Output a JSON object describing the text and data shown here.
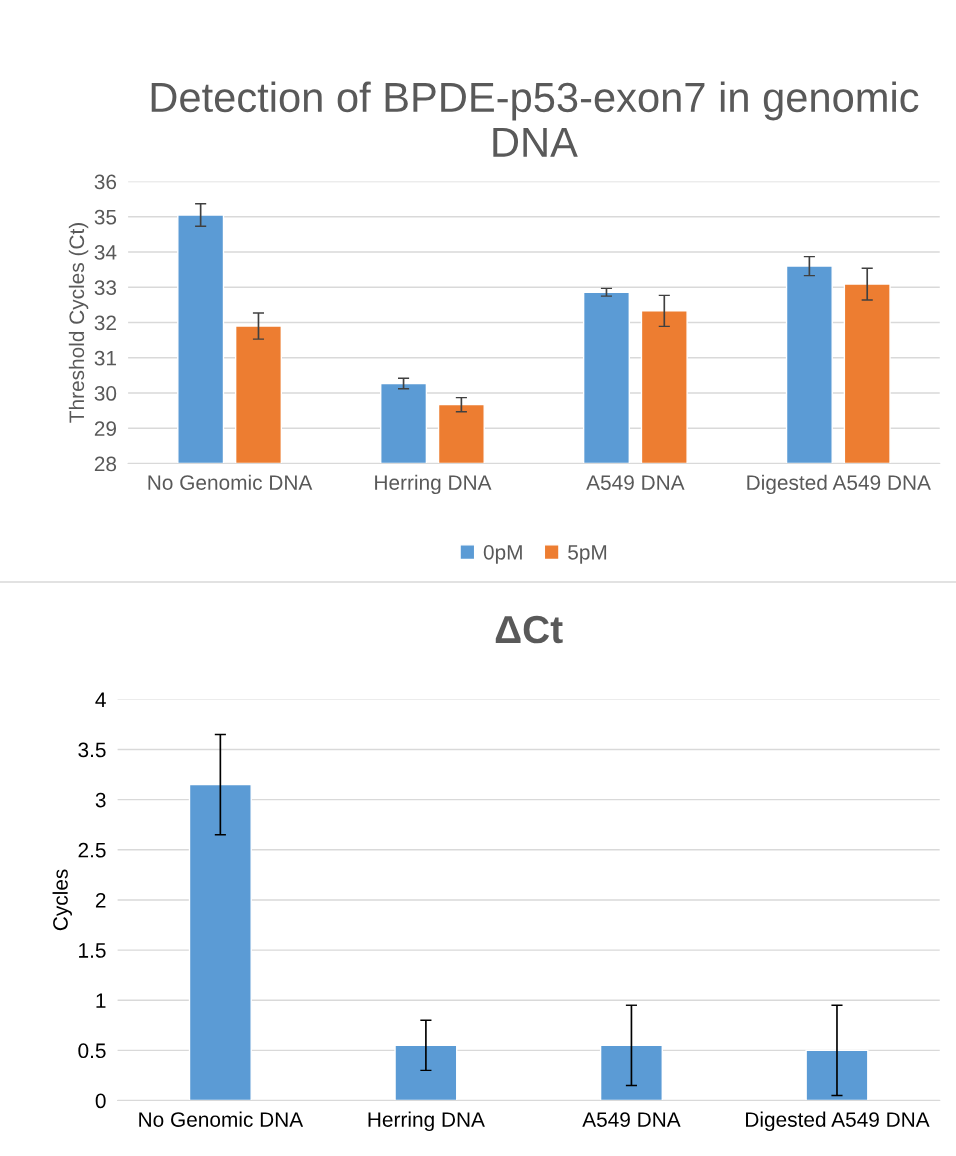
{
  "chart_data": [
    {
      "type": "bar",
      "title": "Detection of BPDE-p53-exon7 in genomic DNA",
      "ylabel": "Threshold Cycles (Ct)",
      "categories": [
        "No Genomic DNA",
        "Herring DNA",
        "A549 DNA",
        "Digested A549 DNA"
      ],
      "series": [
        {
          "name": "0pM",
          "color": "#5b9bd5",
          "values": [
            35.05,
            30.27,
            32.86,
            33.6
          ],
          "errors": [
            0.32,
            0.15,
            0.11,
            0.27
          ]
        },
        {
          "name": "5pM",
          "color": "#ed7d31",
          "values": [
            31.9,
            29.67,
            32.33,
            33.09
          ],
          "errors": [
            0.37,
            0.2,
            0.44,
            0.45
          ]
        }
      ],
      "ylim": [
        28,
        36
      ],
      "yticks": [
        28,
        29,
        30,
        31,
        32,
        33,
        34,
        35,
        36
      ],
      "grid": "y",
      "legend": "bottom"
    },
    {
      "type": "bar",
      "title": "ΔCt",
      "ylabel": "Cycles",
      "categories": [
        "No Genomic DNA",
        "Herring DNA",
        "A549 DNA",
        "Digested A549 DNA"
      ],
      "series": [
        {
          "color": "#5b9bd5",
          "values": [
            3.15,
            0.55,
            0.55,
            0.5
          ],
          "errors": [
            0.5,
            0.25,
            0.4,
            0.45
          ]
        }
      ],
      "ylim": [
        0,
        4
      ],
      "yticks": [
        0,
        0.5,
        1,
        1.5,
        2,
        2.5,
        3,
        3.5,
        4
      ],
      "grid": "y"
    }
  ]
}
